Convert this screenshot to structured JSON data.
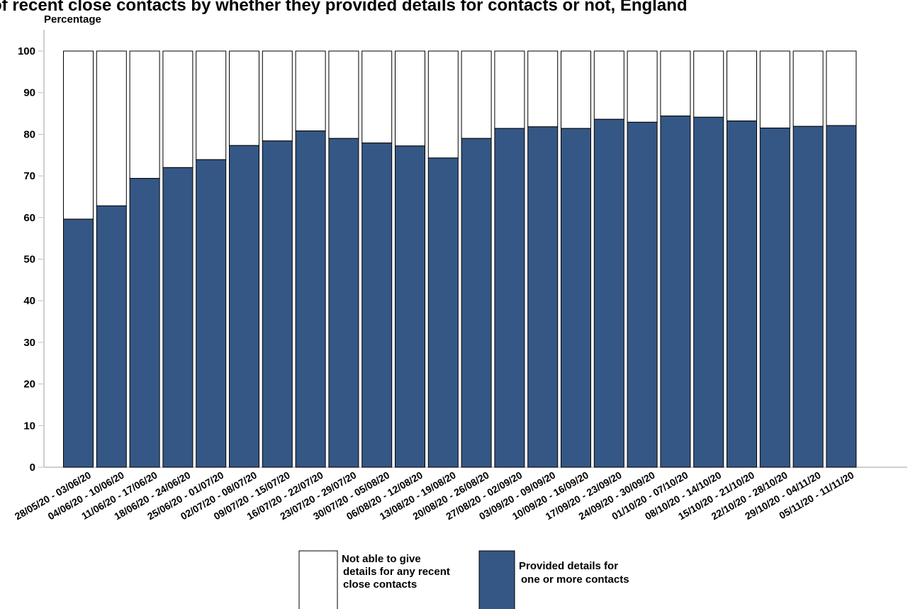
{
  "chart_data": {
    "type": "bar",
    "stacked": true,
    "title": "of recent close contacts by whether they provided details for contacts or not, England",
    "ylabel": "Percentage",
    "xlabel": "",
    "ylim": [
      0,
      100
    ],
    "yticks": [
      0,
      10,
      20,
      30,
      40,
      50,
      60,
      70,
      80,
      90,
      100
    ],
    "grid": false,
    "legend_position": "bottom",
    "categories": [
      "28/05/20 - 03/06/20",
      "04/06/20 - 10/06/20",
      "11/06/20 - 17/06/20",
      "18/06/20 - 24/06/20",
      "25/06/20 - 01/07/20",
      "02/07/20 - 08/07/20",
      "09/07/20 - 15/07/20",
      "16/07/20 - 22/07/20",
      "23/07/20 - 29/07/20",
      "30/07/20 - 05/08/20",
      "06/08/20 - 12/08/20",
      "13/08/20 - 19/08/20",
      "20/08/20 - 26/08/20",
      "27/08/20 - 02/09/20",
      "03/09/20 - 09/09/20",
      "10/09/20 - 16/09/20",
      "17/09/20 - 23/09/20",
      "24/09/20 - 30/09/20",
      "01/10/20 - 07/10/20",
      "08/10/20 - 14/10/20",
      "15/10/20 - 21/10/20",
      "22/10/20 - 28/10/20",
      "29/10/20 - 04/11/20",
      "05/11/20 - 11/11/20"
    ],
    "series": [
      {
        "name": "Provided details for one or more contacts",
        "color": "#355786",
        "values": [
          59.6,
          62.8,
          69.4,
          72.0,
          73.9,
          77.3,
          78.4,
          80.8,
          79.0,
          77.9,
          77.2,
          74.3,
          79.0,
          81.4,
          81.8,
          81.4,
          83.6,
          82.9,
          84.4,
          84.1,
          83.2,
          81.5,
          81.9,
          82.1
        ]
      },
      {
        "name": "Not able to give details for any recent close contacts",
        "color": "#ffffff",
        "values": [
          40.4,
          37.2,
          30.6,
          28.0,
          26.1,
          22.7,
          21.6,
          19.2,
          21.0,
          22.1,
          22.8,
          25.7,
          21.0,
          18.6,
          18.2,
          18.6,
          16.4,
          17.1,
          15.6,
          15.9,
          16.8,
          18.5,
          18.1,
          17.9
        ]
      }
    ],
    "legend": [
      {
        "lines": [
          "Not able to give",
          "details for any recent",
          "close contacts"
        ],
        "color": "#ffffff"
      },
      {
        "lines": [
          "Provided details for",
          "one or more contacts"
        ],
        "color": "#355786"
      }
    ]
  }
}
